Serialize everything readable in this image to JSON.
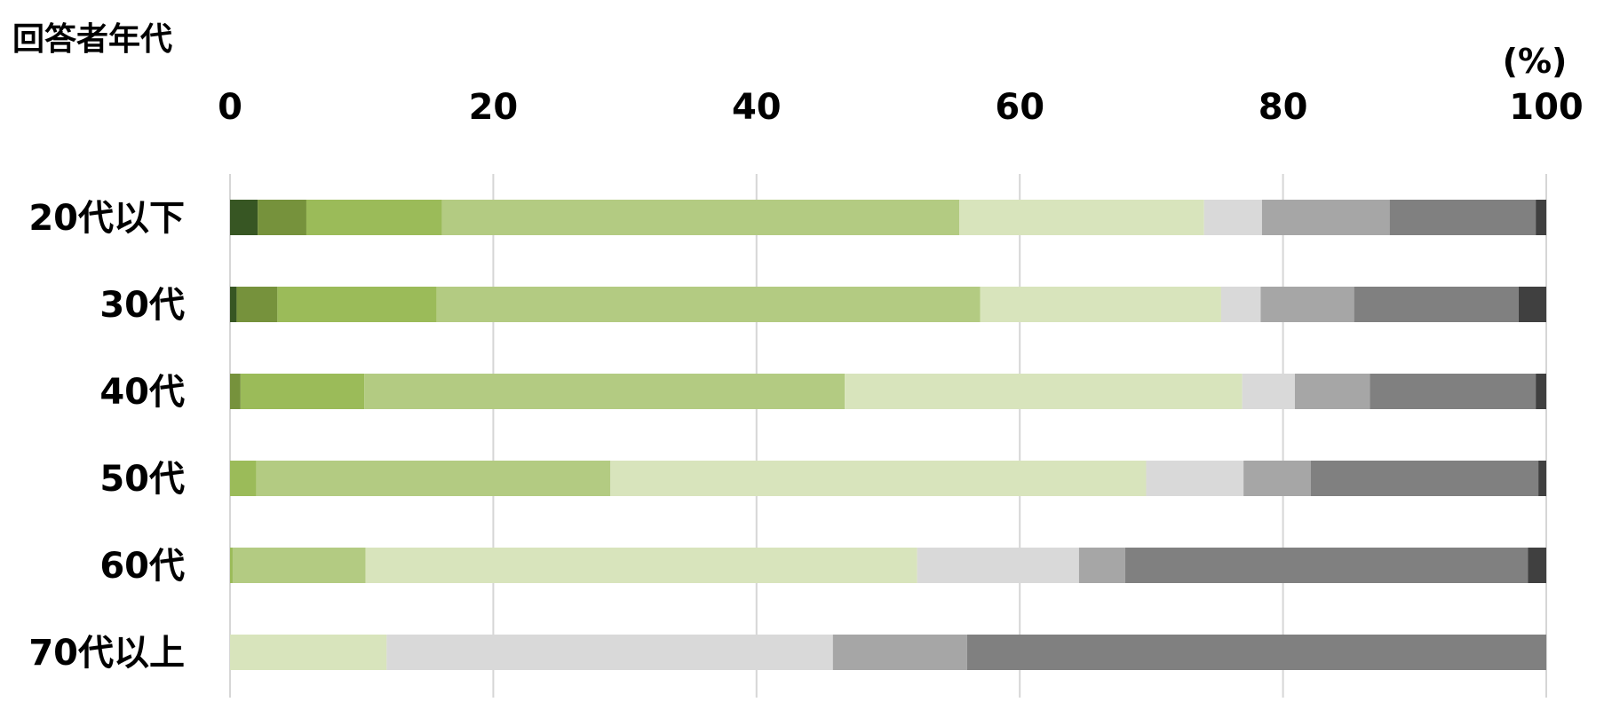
{
  "chart_data": {
    "type": "bar",
    "orientation": "horizontal",
    "stacked": true,
    "title": "回答者年代",
    "unit_label": "(%)",
    "xlim": [
      0,
      100
    ],
    "xticks": [
      "0",
      "20",
      "40",
      "60",
      "80",
      "100"
    ],
    "grid": true,
    "legend": "none",
    "categories": [
      "20代以下",
      "30代",
      "40代",
      "50代",
      "60代",
      "70代以上"
    ],
    "segment_colors": [
      "#375623",
      "#76923c",
      "#9bbb59",
      "#b3cb82",
      "#d8e4bc",
      "#d9d9d9",
      "#a6a6a6",
      "#808080",
      "#404040"
    ],
    "segments": [
      [
        2.1,
        3.7,
        10.3,
        39.3,
        18.6,
        4.4,
        9.7,
        11.1,
        0.8
      ],
      [
        0.5,
        3.1,
        12.1,
        41.3,
        18.3,
        3.0,
        7.1,
        12.5,
        2.1
      ],
      [
        0,
        0.8,
        9.4,
        36.5,
        30.2,
        4.0,
        5.7,
        12.6,
        0.8
      ],
      [
        0,
        0,
        2.0,
        26.9,
        40.7,
        7.4,
        5.1,
        17.3,
        0.6
      ],
      [
        0,
        0,
        0.2,
        10.1,
        41.9,
        12.3,
        3.5,
        30.6,
        1.4
      ],
      [
        0,
        0,
        0,
        0,
        11.9,
        33.9,
        10.2,
        44.0,
        0
      ]
    ]
  }
}
